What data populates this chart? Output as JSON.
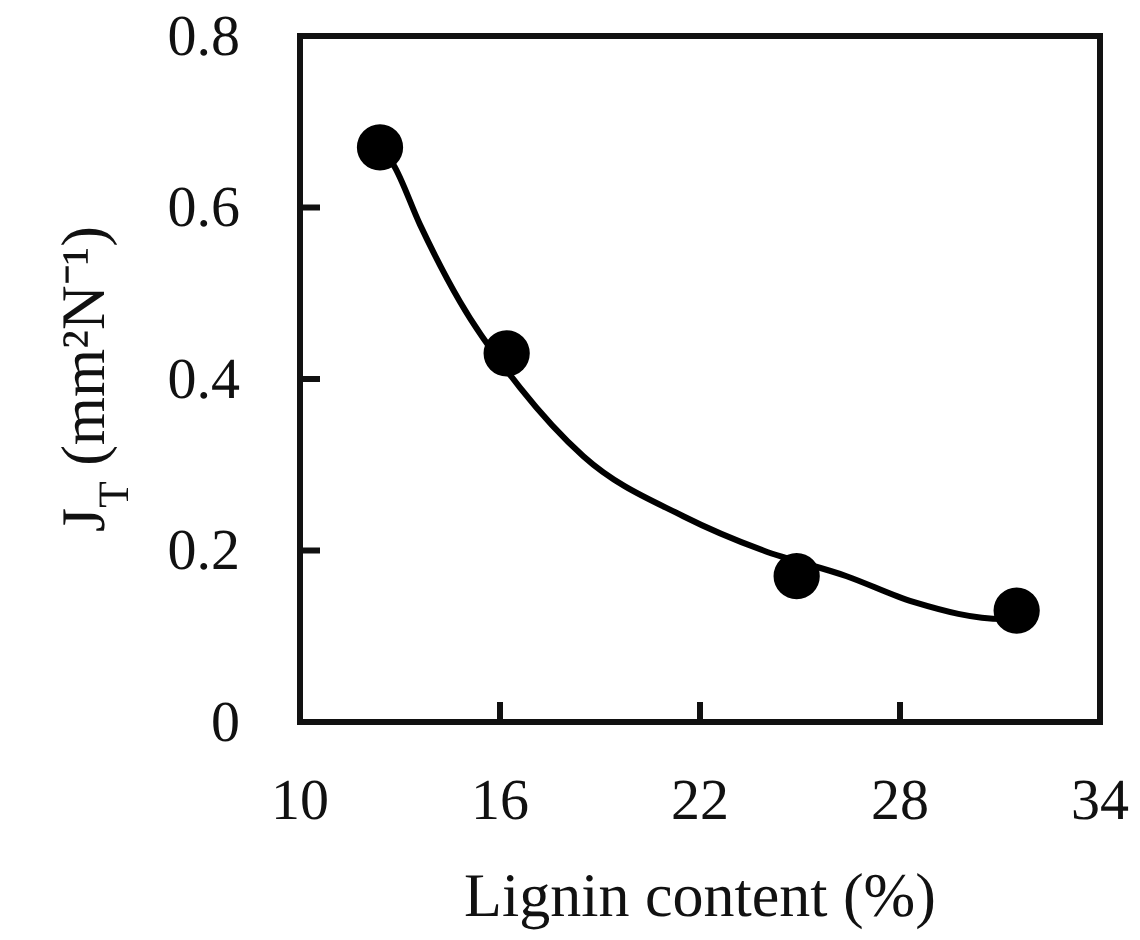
{
  "chart_data": {
    "type": "scatter",
    "xlabel": "Lignin content (%)",
    "ylabel": "J$_{T}$ (mm²N⁻¹)",
    "xlim": [
      10,
      34
    ],
    "xticks": [
      10,
      16,
      22,
      28,
      34
    ],
    "ylim": [
      0,
      0.8
    ],
    "yticks": [
      0,
      0.2,
      0.4,
      0.6,
      0.8
    ],
    "grid": false,
    "series": [
      {
        "color": "#000000",
        "marker": "circle",
        "x": [
          12.4,
          16.2,
          24.9,
          31.5
        ],
        "values": [
          0.67,
          0.43,
          0.17,
          0.13
        ]
      },
      {
        "type": "line",
        "color": "#000000",
        "marker": "none",
        "line_style": "solid",
        "x": [
          12.4,
          12.8,
          13.6,
          14.8,
          16.6,
          18.5,
          21.5,
          23.9,
          26.4,
          28.4,
          31.1,
          31.6
        ],
        "values": [
          0.67,
          0.65,
          0.58,
          0.49,
          0.39,
          0.31,
          0.24,
          0.2,
          0.17,
          0.14,
          0.12,
          0.12
        ]
      }
    ]
  }
}
